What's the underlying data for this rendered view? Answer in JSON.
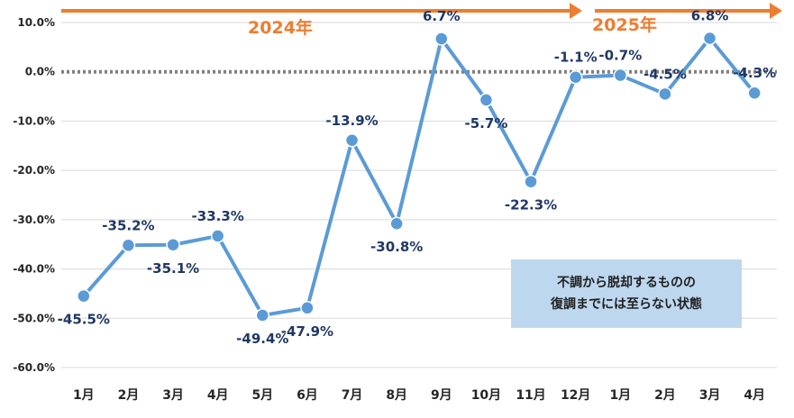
{
  "chart_data": {
    "type": "line",
    "categories": [
      "1月",
      "2月",
      "3月",
      "4月",
      "5月",
      "6月",
      "7月",
      "8月",
      "9月",
      "10月",
      "11月",
      "12月",
      "1月",
      "2月",
      "3月",
      "4月"
    ],
    "values": [
      -45.5,
      -35.2,
      -35.1,
      -33.3,
      -49.4,
      -47.9,
      -13.9,
      -30.8,
      6.7,
      -5.7,
      -22.3,
      -1.1,
      -0.7,
      -4.5,
      6.8,
      -4.3
    ],
    "data_labels": [
      "-45.5%",
      "-35.2%",
      "-35.1%",
      "-33.3%",
      "-49.4%",
      "-47.9%",
      "-13.9%",
      "-30.8%",
      "6.7%",
      "-5.7%",
      "-22.3%",
      "-1.1%",
      "-0.7%",
      "-4.5%",
      "6.8%",
      "-4.3%"
    ],
    "y_ticks": [
      "10.0%",
      "0.0%",
      "-10.0%",
      "-20.0%",
      "-30.0%",
      "-40.0%",
      "-50.0%",
      "-60.0%"
    ],
    "ylim": [
      -60,
      10
    ],
    "grid": true,
    "year_labels": [
      "2024年",
      "2025年"
    ],
    "annotation": [
      "不調から脱却するものの",
      "復調までには至らない状態"
    ],
    "colors": {
      "line": "#5b9bd5",
      "arrow": "#ed7d31",
      "year_text": "#ed7d31",
      "label_text": "#1f3864",
      "zero_line": "#808080",
      "callout_bg": "#bdd7ee"
    }
  }
}
